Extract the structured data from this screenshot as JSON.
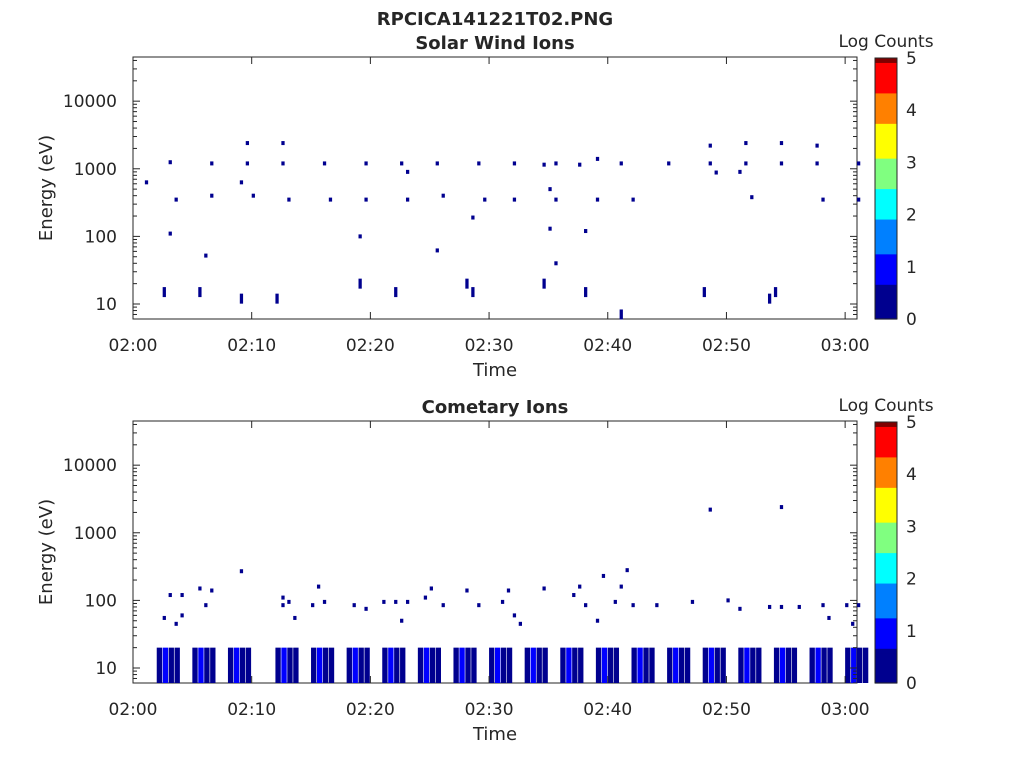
{
  "figure_title": "RPCICA141221T02.PNG",
  "colors": {
    "axis": "#262626",
    "colormap": [
      "#00008f",
      "#0000ff",
      "#0080ff",
      "#00ffff",
      "#80ff80",
      "#ffff00",
      "#ff8000",
      "#ff0000",
      "#800000"
    ]
  },
  "chart_data": [
    {
      "type": "heatmap",
      "title": "Solar Wind Ions",
      "xlabel": "Time",
      "ylabel": "Energy (eV)",
      "x_range": [
        "02:00",
        "03:01"
      ],
      "x_ticks": [
        "02:00",
        "02:10",
        "02:20",
        "02:30",
        "02:40",
        "02:50",
        "03:00"
      ],
      "y_scale": "log",
      "y_range": [
        6,
        45000
      ],
      "y_ticks": [
        10,
        100,
        1000,
        10000
      ],
      "y_tick_labels": [
        "10",
        "100",
        "1000",
        "10000"
      ],
      "colorbar": {
        "label": "Log Counts",
        "range": [
          0,
          5
        ],
        "ticks": [
          "0",
          "1",
          "2",
          "3",
          "4",
          "5"
        ]
      },
      "points": [
        [
          "02:01",
          630,
          0.2
        ],
        [
          "02:02.5",
          15,
          0.3
        ],
        [
          "02:03",
          1250,
          0.3
        ],
        [
          "02:03",
          110,
          0.3
        ],
        [
          "02:03.5",
          350,
          0.3
        ],
        [
          "02:05.5",
          15,
          0.3
        ],
        [
          "02:06",
          52,
          0.3
        ],
        [
          "02:06.5",
          1200,
          0.3
        ],
        [
          "02:06.5",
          400,
          0.3
        ],
        [
          "02:09",
          12,
          0.3
        ],
        [
          "02:09",
          630,
          0.2
        ],
        [
          "02:09.5",
          1200,
          0.3
        ],
        [
          "02:09.5",
          2400,
          0.3
        ],
        [
          "02:10",
          400,
          0.3
        ],
        [
          "02:12",
          12,
          0.3
        ],
        [
          "02:12.5",
          1200,
          0.3
        ],
        [
          "02:12.5",
          2400,
          0.3
        ],
        [
          "02:13",
          350,
          0.3
        ],
        [
          "02:16",
          1200,
          0.3
        ],
        [
          "02:16.5",
          350,
          0.3
        ],
        [
          "02:19",
          20,
          0.3
        ],
        [
          "02:19",
          100,
          0.2
        ],
        [
          "02:19.5",
          1200,
          0.3
        ],
        [
          "02:19.5",
          350,
          0.3
        ],
        [
          "02:22",
          15,
          0.3
        ],
        [
          "02:22.5",
          1200,
          0.3
        ],
        [
          "02:23",
          350,
          0.3
        ],
        [
          "02:23",
          900,
          0.2
        ],
        [
          "02:25.5",
          62,
          0.2
        ],
        [
          "02:25.5",
          1200,
          0.3
        ],
        [
          "02:26",
          400,
          0.3
        ],
        [
          "02:28",
          20,
          0.3
        ],
        [
          "02:28.5",
          15,
          0.3
        ],
        [
          "02:28.5",
          190,
          0.2
        ],
        [
          "02:29",
          1200,
          0.3
        ],
        [
          "02:29.5",
          350,
          0.2
        ],
        [
          "02:32",
          1200,
          0.3
        ],
        [
          "02:32",
          350,
          0.2
        ],
        [
          "02:34.5",
          20,
          0.3
        ],
        [
          "02:34.5",
          1150,
          0.3
        ],
        [
          "02:35",
          500,
          0.2
        ],
        [
          "02:35",
          130,
          0.2
        ],
        [
          "02:35.5",
          40,
          0.3
        ],
        [
          "02:35.5",
          1200,
          0.3
        ],
        [
          "02:35.5",
          350,
          0.3
        ],
        [
          "02:37.5",
          1150,
          0.2
        ],
        [
          "02:38",
          15,
          0.3
        ],
        [
          "02:38",
          120,
          0.2
        ],
        [
          "02:39",
          1400,
          0.3
        ],
        [
          "02:39",
          350,
          0.2
        ],
        [
          "02:41",
          7,
          0.3
        ],
        [
          "02:41",
          1200,
          0.2
        ],
        [
          "02:42",
          350,
          0.2
        ],
        [
          "02:45",
          1200,
          0.3
        ],
        [
          "02:48",
          15,
          0.3
        ],
        [
          "02:48.5",
          1200,
          0.3
        ],
        [
          "02:48.5",
          2200,
          0.2
        ],
        [
          "02:49",
          880,
          0.2
        ],
        [
          "02:51.5",
          1200,
          0.3
        ],
        [
          "02:51.5",
          2400,
          0.2
        ],
        [
          "02:51",
          900,
          0.2
        ],
        [
          "02:52",
          380,
          0.3
        ],
        [
          "02:53.5",
          12,
          0.3
        ],
        [
          "02:54",
          15,
          0.4
        ],
        [
          "02:54.5",
          1200,
          0.3
        ],
        [
          "02:54.5",
          2400,
          0.2
        ],
        [
          "02:57.5",
          1200,
          0.3
        ],
        [
          "02:57.5",
          2200,
          0.2
        ],
        [
          "02:58",
          350,
          0.2
        ],
        [
          "03:01",
          1200,
          0.3
        ],
        [
          "03:01",
          350,
          0.2
        ]
      ]
    },
    {
      "type": "heatmap",
      "title": "Cometary Ions",
      "xlabel": "Time",
      "ylabel": "Energy (eV)",
      "x_range": [
        "02:00",
        "03:01"
      ],
      "x_ticks": [
        "02:00",
        "02:10",
        "02:20",
        "02:30",
        "02:40",
        "02:50",
        "03:00"
      ],
      "y_scale": "log",
      "y_range": [
        6,
        45000
      ],
      "y_ticks": [
        10,
        100,
        1000,
        10000
      ],
      "y_tick_labels": [
        "10",
        "100",
        "1000",
        "10000"
      ],
      "colorbar": {
        "label": "Log Counts",
        "range": [
          0,
          5
        ],
        "ticks": [
          "0",
          "1",
          "2",
          "3",
          "4",
          "5"
        ]
      },
      "low_band": {
        "energy_range": [
          6,
          20
        ],
        "bursts_start": [
          "02:02",
          "02:05",
          "02:08",
          "02:12",
          "02:15",
          "02:18",
          "02:21",
          "02:24",
          "02:27",
          "02:30",
          "02:33",
          "02:36",
          "02:39",
          "02:42",
          "02:45",
          "02:48",
          "02:51",
          "02:54",
          "02:57",
          "03:00"
        ],
        "level": 0.8
      },
      "points": [
        [
          "02:02.5",
          55,
          0.3
        ],
        [
          "02:03",
          120,
          0.2
        ],
        [
          "02:03.5",
          45,
          0.3
        ],
        [
          "02:04",
          60,
          0.3
        ],
        [
          "02:04",
          120,
          0.2
        ],
        [
          "02:05.5",
          150,
          0.2
        ],
        [
          "02:06",
          85,
          0.3
        ],
        [
          "02:06.5",
          140,
          0.2
        ],
        [
          "02:09",
          270,
          0.2
        ],
        [
          "02:12.5",
          85,
          0.3
        ],
        [
          "02:12.5",
          110,
          0.2
        ],
        [
          "02:13",
          95,
          0.3
        ],
        [
          "02:13.5",
          55,
          0.2
        ],
        [
          "02:15",
          85,
          0.3
        ],
        [
          "02:15.5",
          160,
          0.2
        ],
        [
          "02:16",
          95,
          0.3
        ],
        [
          "02:18.5",
          85,
          0.3
        ],
        [
          "02:19.5",
          75,
          0.2
        ],
        [
          "02:21",
          95,
          0.2
        ],
        [
          "02:22",
          95,
          0.2
        ],
        [
          "02:22.5",
          50,
          0.2
        ],
        [
          "02:23",
          95,
          0.2
        ],
        [
          "02:24.5",
          110,
          0.2
        ],
        [
          "02:25",
          150,
          0.2
        ],
        [
          "02:26",
          85,
          0.2
        ],
        [
          "02:28",
          140,
          0.2
        ],
        [
          "02:29",
          85,
          0.3
        ],
        [
          "02:31",
          95,
          0.3
        ],
        [
          "02:31.5",
          140,
          0.2
        ],
        [
          "02:32",
          60,
          0.2
        ],
        [
          "02:32.5",
          45,
          0.2
        ],
        [
          "02:34.5",
          150,
          0.2
        ],
        [
          "02:37",
          120,
          0.2
        ],
        [
          "02:37.5",
          160,
          0.2
        ],
        [
          "02:38",
          85,
          0.3
        ],
        [
          "02:39",
          50,
          0.3
        ],
        [
          "02:39.5",
          230,
          0.2
        ],
        [
          "02:40.5",
          95,
          0.3
        ],
        [
          "02:41",
          160,
          0.3
        ],
        [
          "02:41.5",
          280,
          0.2
        ],
        [
          "02:42",
          85,
          0.3
        ],
        [
          "02:44",
          85,
          0.3
        ],
        [
          "02:47",
          95,
          0.2
        ],
        [
          "02:48.5",
          2200,
          0.2
        ],
        [
          "02:50",
          100,
          0.2
        ],
        [
          "02:51",
          75,
          0.3
        ],
        [
          "02:53.5",
          80,
          0.2
        ],
        [
          "02:54.5",
          2400,
          0.2
        ],
        [
          "02:54.5",
          80,
          0.2
        ],
        [
          "02:56",
          80,
          0.2
        ],
        [
          "02:58",
          85,
          0.3
        ],
        [
          "02:58.5",
          55,
          0.2
        ],
        [
          "03:00",
          85,
          0.2
        ],
        [
          "03:00.5",
          45,
          0.3
        ],
        [
          "03:01",
          85,
          0.2
        ]
      ]
    }
  ]
}
